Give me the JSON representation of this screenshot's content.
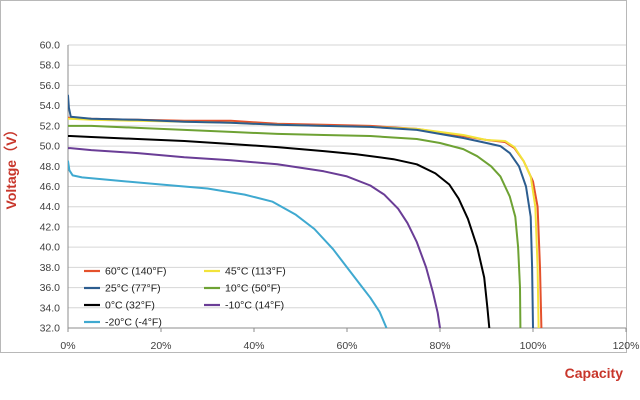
{
  "chart_data": {
    "type": "line",
    "xlabel": "Capacity",
    "ylabel": "Voltage（V）",
    "xlim": [
      0,
      120
    ],
    "ylim": [
      32,
      60
    ],
    "x_ticks": [
      "0%",
      "20%",
      "40%",
      "60%",
      "80%",
      "100%",
      "120%"
    ],
    "y_ticks": [
      "32.0",
      "34.0",
      "36.0",
      "38.0",
      "40.0",
      "42.0",
      "44.0",
      "46.0",
      "48.0",
      "50.0",
      "52.0",
      "54.0",
      "56.0",
      "58.0",
      "60.0"
    ],
    "grid": true,
    "legend_placement": "bottom-left",
    "series": [
      {
        "name": "60°C  (140°F)",
        "color": "#e4512c",
        "points": [
          [
            0,
            52.8
          ],
          [
            0.5,
            52.8
          ],
          [
            5,
            52.7
          ],
          [
            15,
            52.6
          ],
          [
            25,
            52.5
          ],
          [
            35,
            52.5
          ],
          [
            45,
            52.2
          ],
          [
            55,
            52.1
          ],
          [
            65,
            52.0
          ],
          [
            75,
            51.7
          ],
          [
            85,
            51.0
          ],
          [
            90,
            50.6
          ],
          [
            94,
            50.4
          ],
          [
            96,
            49.8
          ],
          [
            98,
            48.5
          ],
          [
            100,
            46.5
          ],
          [
            101,
            44
          ],
          [
            101.5,
            38
          ],
          [
            101.8,
            32
          ]
        ]
      },
      {
        "name": "45°C  (113°F)",
        "color": "#f2e33a",
        "points": [
          [
            0,
            52.7
          ],
          [
            0.5,
            52.7
          ],
          [
            5,
            52.6
          ],
          [
            15,
            52.5
          ],
          [
            25,
            52.4
          ],
          [
            35,
            52.3
          ],
          [
            45,
            52.1
          ],
          [
            55,
            52.0
          ],
          [
            65,
            51.9
          ],
          [
            75,
            51.7
          ],
          [
            85,
            51.1
          ],
          [
            90,
            50.6
          ],
          [
            94,
            50.5
          ],
          [
            96,
            49.9
          ],
          [
            98,
            48.5
          ],
          [
            99.5,
            47
          ],
          [
            100.5,
            44
          ],
          [
            101,
            38
          ],
          [
            101.2,
            32
          ]
        ]
      },
      {
        "name": "25°C  (77°F)",
        "color": "#2c5d8f",
        "points": [
          [
            0,
            55.0
          ],
          [
            0.2,
            53.8
          ],
          [
            0.6,
            52.9
          ],
          [
            5,
            52.7
          ],
          [
            15,
            52.6
          ],
          [
            25,
            52.4
          ],
          [
            35,
            52.3
          ],
          [
            45,
            52.1
          ],
          [
            55,
            52.0
          ],
          [
            65,
            51.9
          ],
          [
            75,
            51.6
          ],
          [
            85,
            50.8
          ],
          [
            90,
            50.3
          ],
          [
            93,
            50.0
          ],
          [
            95,
            49.3
          ],
          [
            97,
            48.0
          ],
          [
            98.5,
            46
          ],
          [
            99.5,
            43
          ],
          [
            99.8,
            38
          ],
          [
            100,
            32
          ]
        ]
      },
      {
        "name": "10°C  (50°F)",
        "color": "#6ea234",
        "points": [
          [
            0,
            52.0
          ],
          [
            0.5,
            52.0
          ],
          [
            5,
            52.0
          ],
          [
            15,
            51.8
          ],
          [
            25,
            51.6
          ],
          [
            35,
            51.4
          ],
          [
            45,
            51.2
          ],
          [
            55,
            51.1
          ],
          [
            65,
            51.0
          ],
          [
            75,
            50.7
          ],
          [
            80,
            50.3
          ],
          [
            85,
            49.7
          ],
          [
            88,
            49.0
          ],
          [
            91,
            48.0
          ],
          [
            93,
            47.0
          ],
          [
            95,
            45.0
          ],
          [
            96.2,
            43
          ],
          [
            96.8,
            40
          ],
          [
            97.2,
            36
          ],
          [
            97.3,
            32
          ]
        ]
      },
      {
        "name": "0°C  (32°F)",
        "color": "#000000",
        "points": [
          [
            0,
            51.0
          ],
          [
            0.5,
            51.0
          ],
          [
            5,
            50.9
          ],
          [
            15,
            50.7
          ],
          [
            25,
            50.5
          ],
          [
            35,
            50.2
          ],
          [
            45,
            49.9
          ],
          [
            55,
            49.5
          ],
          [
            62,
            49.2
          ],
          [
            70,
            48.7
          ],
          [
            75,
            48.2
          ],
          [
            79,
            47.3
          ],
          [
            82,
            46.2
          ],
          [
            84,
            44.8
          ],
          [
            86,
            42.8
          ],
          [
            88,
            40.0
          ],
          [
            89.5,
            37
          ],
          [
            90.2,
            34
          ],
          [
            90.6,
            32
          ]
        ]
      },
      {
        "name": "-10°C  (14°F)",
        "color": "#6a3d96",
        "points": [
          [
            0,
            49.8
          ],
          [
            0.5,
            49.8
          ],
          [
            5,
            49.6
          ],
          [
            15,
            49.3
          ],
          [
            25,
            48.9
          ],
          [
            35,
            48.6
          ],
          [
            45,
            48.2
          ],
          [
            55,
            47.5
          ],
          [
            60,
            47.0
          ],
          [
            65,
            46.1
          ],
          [
            68,
            45.2
          ],
          [
            71,
            43.8
          ],
          [
            73,
            42.4
          ],
          [
            75,
            40.5
          ],
          [
            77,
            38.0
          ],
          [
            78.5,
            35.5
          ],
          [
            79.5,
            33.5
          ],
          [
            80,
            32
          ]
        ]
      },
      {
        "name": "-20°C  (-4°F)",
        "color": "#3fa9d0",
        "points": [
          [
            0,
            48.5
          ],
          [
            0.3,
            47.6
          ],
          [
            1,
            47.1
          ],
          [
            3,
            46.9
          ],
          [
            10,
            46.6
          ],
          [
            20,
            46.2
          ],
          [
            30,
            45.8
          ],
          [
            38,
            45.2
          ],
          [
            44,
            44.5
          ],
          [
            49,
            43.2
          ],
          [
            53,
            41.8
          ],
          [
            57,
            39.8
          ],
          [
            60,
            38.0
          ],
          [
            63,
            36.2
          ],
          [
            65,
            35.0
          ],
          [
            67,
            33.6
          ],
          [
            68.5,
            32
          ]
        ]
      }
    ]
  }
}
